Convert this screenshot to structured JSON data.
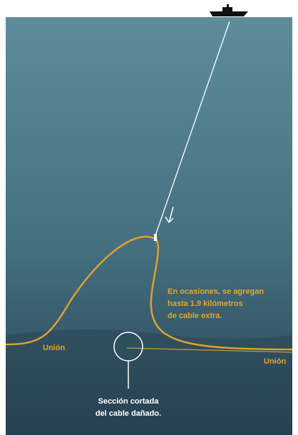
{
  "callout": {
    "lines": [
      "En ocasiones, se agregan",
      "hasta 1.9 kilómetros",
      "de cable extra."
    ]
  },
  "labels": {
    "union_left": "Unión",
    "union_right": "Unión"
  },
  "caption": {
    "lines": [
      "Sección cortada",
      "del cable dañado."
    ]
  }
}
